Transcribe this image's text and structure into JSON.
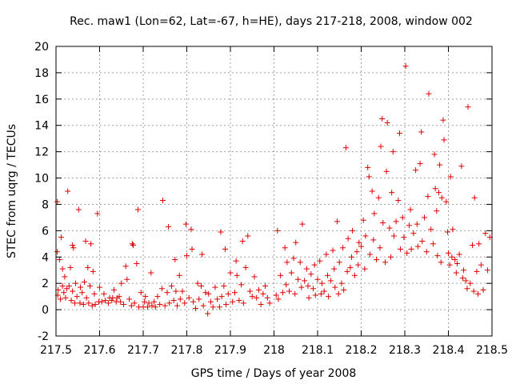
{
  "chart_data": {
    "type": "scatter",
    "title": "Rec. maw1 (Lon=62, Lat=-67, h=HE), days 217-218, 2008, window 002",
    "xlabel": "GPS time / Days of year 2008",
    "ylabel": "STEC from uqrg / TECUs",
    "xlim": [
      217.5,
      218.5
    ],
    "ylim": [
      -2,
      20
    ],
    "x_ticks": [
      "217.5",
      "217.6",
      "217.7",
      "217.8",
      "217.9",
      "218",
      "218.1",
      "218.2",
      "218.3",
      "218.4",
      "218.5"
    ],
    "y_ticks": [
      "-2",
      "0",
      "2",
      "4",
      "6",
      "8",
      "10",
      "12",
      "14",
      "16",
      "18",
      "20"
    ],
    "grid": true,
    "marker": "plus",
    "color": "#e00000",
    "series": [
      {
        "points": [
          [
            217.503,
            8.2
          ],
          [
            217.503,
            4.4
          ],
          [
            217.504,
            1.1
          ],
          [
            217.505,
            1.5
          ],
          [
            217.508,
            3.8
          ],
          [
            217.51,
            0.8
          ],
          [
            217.512,
            5.5
          ],
          [
            217.515,
            3.1
          ],
          [
            217.515,
            1.8
          ],
          [
            217.518,
            1.3
          ],
          [
            217.52,
            2.5
          ],
          [
            217.522,
            0.9
          ],
          [
            217.525,
            1.6
          ],
          [
            217.527,
            9.0
          ],
          [
            217.53,
            1.8
          ],
          [
            217.533,
            3.2
          ],
          [
            217.535,
            0.7
          ],
          [
            217.538,
            4.9
          ],
          [
            217.538,
            1.4
          ],
          [
            217.54,
            4.7
          ],
          [
            217.543,
            0.5
          ],
          [
            217.545,
            2.0
          ],
          [
            217.548,
            1.0
          ],
          [
            217.552,
            7.6
          ],
          [
            217.555,
            0.5
          ],
          [
            217.556,
            1.7
          ],
          [
            217.56,
            1.3
          ],
          [
            217.563,
            0.4
          ],
          [
            217.565,
            2.1
          ],
          [
            217.568,
            5.2
          ],
          [
            217.57,
            0.9
          ],
          [
            217.573,
            3.2
          ],
          [
            217.575,
            0.5
          ],
          [
            217.578,
            1.8
          ],
          [
            217.58,
            5.0
          ],
          [
            217.583,
            0.3
          ],
          [
            217.585,
            2.9
          ],
          [
            217.588,
            1.2
          ],
          [
            217.59,
            0.4
          ],
          [
            217.595,
            7.3
          ],
          [
            217.598,
            0.6
          ],
          [
            217.6,
            1.7
          ],
          [
            217.605,
            0.6
          ],
          [
            217.61,
            1.2
          ],
          [
            217.613,
            0.7
          ],
          [
            217.62,
            0.5
          ],
          [
            217.623,
            0.9
          ],
          [
            217.628,
            0.7
          ],
          [
            217.63,
            0.9
          ],
          [
            217.633,
            1.5
          ],
          [
            217.638,
            0.6
          ],
          [
            217.64,
            0.9
          ],
          [
            217.645,
            1.0
          ],
          [
            217.648,
            0.6
          ],
          [
            217.65,
            2.0
          ],
          [
            217.655,
            0.4
          ],
          [
            217.66,
            3.3
          ],
          [
            217.663,
            2.3
          ],
          [
            217.668,
            0.8
          ],
          [
            217.673,
            0.3
          ],
          [
            217.675,
            5.0
          ],
          [
            217.677,
            4.9
          ],
          [
            217.68,
            0.5
          ],
          [
            217.685,
            3.5
          ],
          [
            217.688,
            7.6
          ],
          [
            217.69,
            0.2
          ],
          [
            217.695,
            1.3
          ],
          [
            217.7,
            0.2
          ],
          [
            217.703,
            0.6
          ],
          [
            217.705,
            1.0
          ],
          [
            217.71,
            0.2
          ],
          [
            217.713,
            0.5
          ],
          [
            217.718,
            2.8
          ],
          [
            217.72,
            0.3
          ],
          [
            217.725,
            0.6
          ],
          [
            217.728,
            0.2
          ],
          [
            217.733,
            1.0
          ],
          [
            217.738,
            0.4
          ],
          [
            217.743,
            1.6
          ],
          [
            217.745,
            8.3
          ],
          [
            217.75,
            0.3
          ],
          [
            217.755,
            1.3
          ],
          [
            217.758,
            6.3
          ],
          [
            217.76,
            0.5
          ],
          [
            217.765,
            1.8
          ],
          [
            217.77,
            0.7
          ],
          [
            217.773,
            3.8
          ],
          [
            217.775,
            1.4
          ],
          [
            217.778,
            0.3
          ],
          [
            217.783,
            2.6
          ],
          [
            217.785,
            0.8
          ],
          [
            217.79,
            1.4
          ],
          [
            217.795,
            0.5
          ],
          [
            217.798,
            6.5
          ],
          [
            217.8,
            4.1
          ],
          [
            217.805,
            0.9
          ],
          [
            217.81,
            6.1
          ],
          [
            217.812,
            4.6
          ],
          [
            217.815,
            0.6
          ],
          [
            217.82,
            0.1
          ],
          [
            217.825,
            2.0
          ],
          [
            217.828,
            0.8
          ],
          [
            217.833,
            1.8
          ],
          [
            217.835,
            4.2
          ],
          [
            217.838,
            0.3
          ],
          [
            217.843,
            1.3
          ],
          [
            217.848,
            -0.3
          ],
          [
            217.85,
            1.2
          ],
          [
            217.855,
            0.6
          ],
          [
            217.86,
            0.2
          ],
          [
            217.865,
            1.7
          ],
          [
            217.87,
            0.8
          ],
          [
            217.875,
            0.2
          ],
          [
            217.878,
            5.9
          ],
          [
            217.88,
            1.0
          ],
          [
            217.885,
            1.8
          ],
          [
            217.888,
            4.6
          ],
          [
            217.89,
            0.4
          ],
          [
            217.895,
            1.2
          ],
          [
            217.9,
            2.8
          ],
          [
            217.905,
            0.6
          ],
          [
            217.91,
            1.3
          ],
          [
            217.913,
            3.7
          ],
          [
            217.915,
            2.6
          ],
          [
            217.92,
            0.7
          ],
          [
            217.925,
            1.9
          ],
          [
            217.928,
            5.2
          ],
          [
            217.93,
            0.5
          ],
          [
            217.935,
            3.2
          ],
          [
            217.94,
            5.6
          ],
          [
            217.945,
            1.4
          ],
          [
            217.95,
            1.0
          ],
          [
            217.955,
            2.5
          ],
          [
            217.96,
            0.9
          ],
          [
            217.965,
            1.5
          ],
          [
            217.97,
            0.4
          ],
          [
            217.975,
            1.2
          ],
          [
            217.98,
            1.8
          ],
          [
            217.985,
            0.9
          ],
          [
            217.99,
            0.5
          ],
          [
            218.005,
            1.1
          ],
          [
            218.008,
            6.0
          ],
          [
            218.01,
            0.8
          ],
          [
            218.015,
            2.6
          ],
          [
            218.02,
            1.3
          ],
          [
            218.025,
            4.7
          ],
          [
            218.028,
            1.9
          ],
          [
            218.03,
            3.6
          ],
          [
            218.035,
            1.4
          ],
          [
            218.04,
            2.8
          ],
          [
            218.045,
            3.9
          ],
          [
            218.048,
            1.2
          ],
          [
            218.05,
            5.1
          ],
          [
            218.055,
            2.3
          ],
          [
            218.06,
            3.6
          ],
          [
            218.063,
            1.7
          ],
          [
            218.065,
            6.5
          ],
          [
            218.07,
            2.2
          ],
          [
            218.075,
            3.1
          ],
          [
            218.078,
            1.8
          ],
          [
            218.08,
            0.9
          ],
          [
            218.085,
            2.7
          ],
          [
            218.09,
            1.6
          ],
          [
            218.093,
            3.4
          ],
          [
            218.095,
            1.1
          ],
          [
            218.1,
            2.3
          ],
          [
            218.105,
            3.7
          ],
          [
            218.108,
            1.2
          ],
          [
            218.11,
            2.0
          ],
          [
            218.115,
            1.4
          ],
          [
            218.12,
            4.2
          ],
          [
            218.123,
            2.6
          ],
          [
            218.125,
            1.0
          ],
          [
            218.13,
            2.2
          ],
          [
            218.135,
            4.5
          ],
          [
            218.138,
            3.1
          ],
          [
            218.14,
            1.7
          ],
          [
            218.145,
            6.7
          ],
          [
            218.148,
            1.2
          ],
          [
            218.15,
            3.6
          ],
          [
            218.155,
            2.0
          ],
          [
            218.158,
            4.7
          ],
          [
            218.16,
            1.5
          ],
          [
            218.165,
            12.3
          ],
          [
            218.168,
            2.9
          ],
          [
            218.17,
            5.4
          ],
          [
            218.175,
            3.2
          ],
          [
            218.178,
            4.0
          ],
          [
            218.18,
            6.0
          ],
          [
            218.185,
            2.6
          ],
          [
            218.19,
            4.4
          ],
          [
            218.193,
            3.4
          ],
          [
            218.195,
            5.1
          ],
          [
            218.2,
            4.8
          ],
          [
            218.205,
            6.8
          ],
          [
            218.208,
            3.1
          ],
          [
            218.21,
            5.6
          ],
          [
            218.215,
            10.8
          ],
          [
            218.218,
            10.1
          ],
          [
            218.22,
            4.2
          ],
          [
            218.225,
            9.0
          ],
          [
            218.228,
            5.3
          ],
          [
            218.23,
            7.3
          ],
          [
            218.235,
            3.8
          ],
          [
            218.24,
            8.5
          ],
          [
            218.243,
            4.7
          ],
          [
            218.245,
            12.4
          ],
          [
            218.248,
            14.5
          ],
          [
            218.25,
            6.6
          ],
          [
            218.255,
            3.6
          ],
          [
            218.258,
            10.5
          ],
          [
            218.26,
            14.2
          ],
          [
            218.265,
            6.2
          ],
          [
            218.268,
            4.0
          ],
          [
            218.27,
            8.9
          ],
          [
            218.273,
            12.0
          ],
          [
            218.275,
            5.6
          ],
          [
            218.28,
            6.7
          ],
          [
            218.285,
            8.3
          ],
          [
            218.288,
            13.4
          ],
          [
            218.29,
            4.6
          ],
          [
            218.295,
            7.0
          ],
          [
            218.298,
            5.5
          ],
          [
            218.302,
            18.5
          ],
          [
            218.305,
            4.3
          ],
          [
            218.31,
            6.4
          ],
          [
            218.313,
            7.6
          ],
          [
            218.315,
            4.6
          ],
          [
            218.32,
            5.8
          ],
          [
            218.325,
            10.6
          ],
          [
            218.328,
            6.5
          ],
          [
            218.33,
            4.8
          ],
          [
            218.335,
            11.1
          ],
          [
            218.338,
            13.5
          ],
          [
            218.34,
            5.2
          ],
          [
            218.345,
            7.0
          ],
          [
            218.35,
            4.4
          ],
          [
            218.353,
            8.6
          ],
          [
            218.355,
            16.4
          ],
          [
            218.36,
            6.1
          ],
          [
            218.365,
            5.0
          ],
          [
            218.368,
            11.8
          ],
          [
            218.37,
            9.2
          ],
          [
            218.373,
            7.5
          ],
          [
            218.375,
            4.1
          ],
          [
            218.378,
            8.9
          ],
          [
            218.38,
            11.0
          ],
          [
            218.383,
            3.6
          ],
          [
            218.385,
            8.5
          ],
          [
            218.388,
            14.4
          ],
          [
            218.39,
            12.9
          ],
          [
            218.395,
            8.2
          ],
          [
            218.398,
            5.9
          ],
          [
            218.4,
            4.3
          ],
          [
            218.403,
            3.4
          ],
          [
            218.405,
            10.1
          ],
          [
            218.408,
            4.0
          ],
          [
            218.41,
            6.1
          ],
          [
            218.415,
            3.8
          ],
          [
            218.418,
            2.8
          ],
          [
            218.42,
            3.5
          ],
          [
            218.425,
            4.2
          ],
          [
            218.43,
            10.9
          ],
          [
            218.433,
            2.4
          ],
          [
            218.435,
            3.0
          ],
          [
            218.44,
            2.2
          ],
          [
            218.443,
            1.6
          ],
          [
            218.445,
            15.4
          ],
          [
            218.45,
            2.0
          ],
          [
            218.455,
            4.9
          ],
          [
            218.458,
            1.4
          ],
          [
            218.46,
            8.5
          ],
          [
            218.465,
            2.9
          ],
          [
            218.468,
            1.2
          ],
          [
            218.47,
            5.0
          ],
          [
            218.475,
            3.4
          ],
          [
            218.48,
            1.5
          ],
          [
            218.485,
            5.8
          ],
          [
            218.49,
            3.0
          ],
          [
            218.495,
            5.5
          ]
        ]
      }
    ]
  }
}
